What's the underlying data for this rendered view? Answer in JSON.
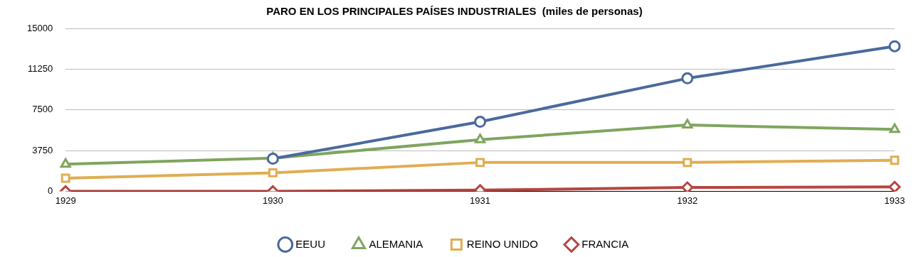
{
  "chart_data": {
    "type": "line",
    "title": "PARO EN LOS PRINCIPALES PAÍSES INDUSTRIALES  (miles de personas)",
    "categories": [
      "1929",
      "1930",
      "1931",
      "1932",
      "1933"
    ],
    "series": [
      {
        "name": "EEUU",
        "color": "#4a6a9c",
        "marker": "circle",
        "values": [
          null,
          3000,
          6400,
          10400,
          13350
        ]
      },
      {
        "name": "ALEMANIA",
        "color": "#7fa55e",
        "marker": "triangle",
        "values": [
          2500,
          3050,
          4750,
          6100,
          5700
        ]
      },
      {
        "name": "REINO UNIDO",
        "color": "#e0ad52",
        "marker": "square",
        "values": [
          1200,
          1700,
          2650,
          2650,
          2850
        ]
      },
      {
        "name": "FRANCIA",
        "color": "#b54641",
        "marker": "diamond",
        "values": [
          0,
          0,
          100,
          350,
          400
        ]
      }
    ],
    "ylim": [
      0,
      15000
    ],
    "yticks": [
      0,
      3750,
      7500,
      11250,
      15000
    ],
    "grid": "y",
    "legend": "bottom"
  }
}
